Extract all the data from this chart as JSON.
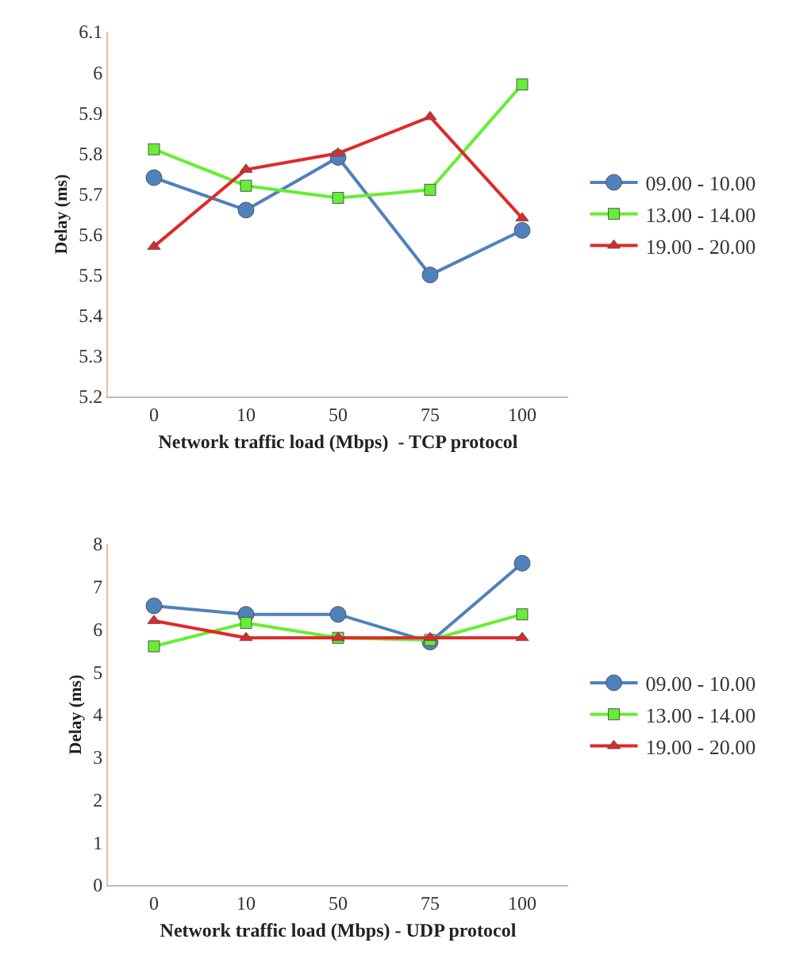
{
  "chart_data": [
    {
      "type": "line",
      "categories": [
        "0",
        "10",
        "50",
        "75",
        "100"
      ],
      "xlabel": "Network traffic load (Mbps)  - TCP protocol",
      "ylabel": "Delay (ms)",
      "ylim": [
        5.2,
        6.1
      ],
      "yticks": [
        5.2,
        5.3,
        5.4,
        5.5,
        5.6,
        5.7,
        5.8,
        5.9,
        6,
        6.1
      ],
      "grid": false,
      "legend": "right",
      "series": [
        {
          "name": "09.00 - 10.00",
          "color": "#4f81bd",
          "marker": "circle",
          "values": [
            5.74,
            5.66,
            5.79,
            5.5,
            5.61
          ]
        },
        {
          "name": "13.00 - 14.00",
          "color": "#66ee33",
          "marker": "square",
          "values": [
            5.81,
            5.72,
            5.69,
            5.71,
            5.97
          ]
        },
        {
          "name": "19.00 - 20.00",
          "color": "#e02828",
          "marker": "triangle",
          "values": [
            5.57,
            5.76,
            5.8,
            5.89,
            5.64
          ]
        }
      ]
    },
    {
      "type": "line",
      "categories": [
        "0",
        "10",
        "50",
        "75",
        "100"
      ],
      "xlabel": "Network traffic load (Mbps) - UDP protocol",
      "ylabel": "Delay (ms)",
      "ylim": [
        0,
        8
      ],
      "yticks": [
        0,
        1,
        2,
        3,
        4,
        5,
        6,
        7,
        8
      ],
      "grid": false,
      "legend": "right",
      "series": [
        {
          "name": "09.00 - 10.00",
          "color": "#4f81bd",
          "marker": "circle",
          "values": [
            6.55,
            6.35,
            6.35,
            5.7,
            7.55
          ]
        },
        {
          "name": "13.00 - 14.00",
          "color": "#66ee33",
          "marker": "square",
          "values": [
            5.6,
            6.15,
            5.8,
            5.75,
            6.35
          ]
        },
        {
          "name": "19.00 - 20.00",
          "color": "#e02828",
          "marker": "triangle",
          "values": [
            6.2,
            5.8,
            5.8,
            5.8,
            5.8
          ]
        }
      ]
    }
  ]
}
